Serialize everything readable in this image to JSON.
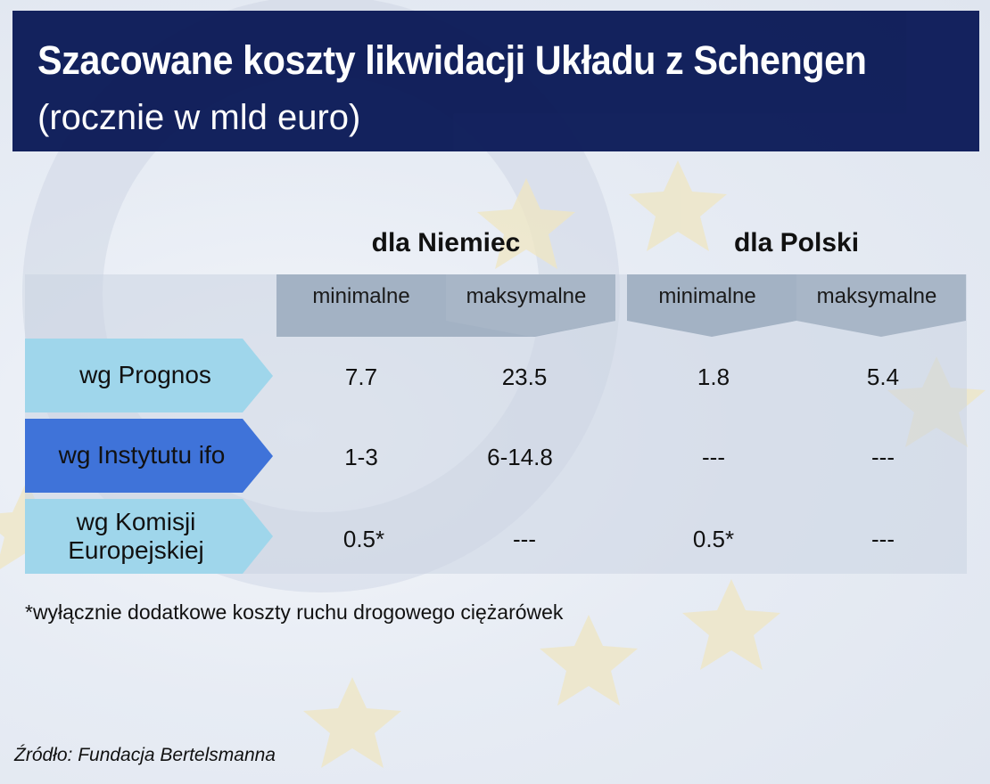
{
  "header": {
    "title": "Szacowane koszty likwidacji Układu z Schengen",
    "subtitle": "(rocznie w mld euro)"
  },
  "colors": {
    "title_bg": "#0b1a57",
    "row_label_light": "#9fd6eb",
    "row_label_dark": "#3f73d9",
    "column_head": "#a3b2c4"
  },
  "chart_data": {
    "type": "table",
    "title": "Szacowane koszty likwidacji Układu z Schengen",
    "subtitle": "(rocznie w mld euro)",
    "column_groups": [
      {
        "name": "dla Niemiec",
        "columns": [
          "minimalne",
          "maksymalne"
        ]
      },
      {
        "name": "dla Polski",
        "columns": [
          "minimalne",
          "maksymalne"
        ]
      }
    ],
    "rows": [
      {
        "label": "wg Prognos",
        "values": [
          "7.7",
          "23.5",
          "1.8",
          "5.4"
        ]
      },
      {
        "label": "wg Instytutu ifo",
        "values": [
          "1-3",
          "6-14.8",
          "---",
          "---"
        ]
      },
      {
        "label": "wg Komisji Europejskiej",
        "values": [
          "0.5*",
          "---",
          "0.5*",
          "---"
        ]
      }
    ],
    "footnote": "*wyłącznie dodatkowe koszty ruchu drogowego ciężarówek",
    "source": "Źródło: Fundacja Bertelsmanna"
  }
}
